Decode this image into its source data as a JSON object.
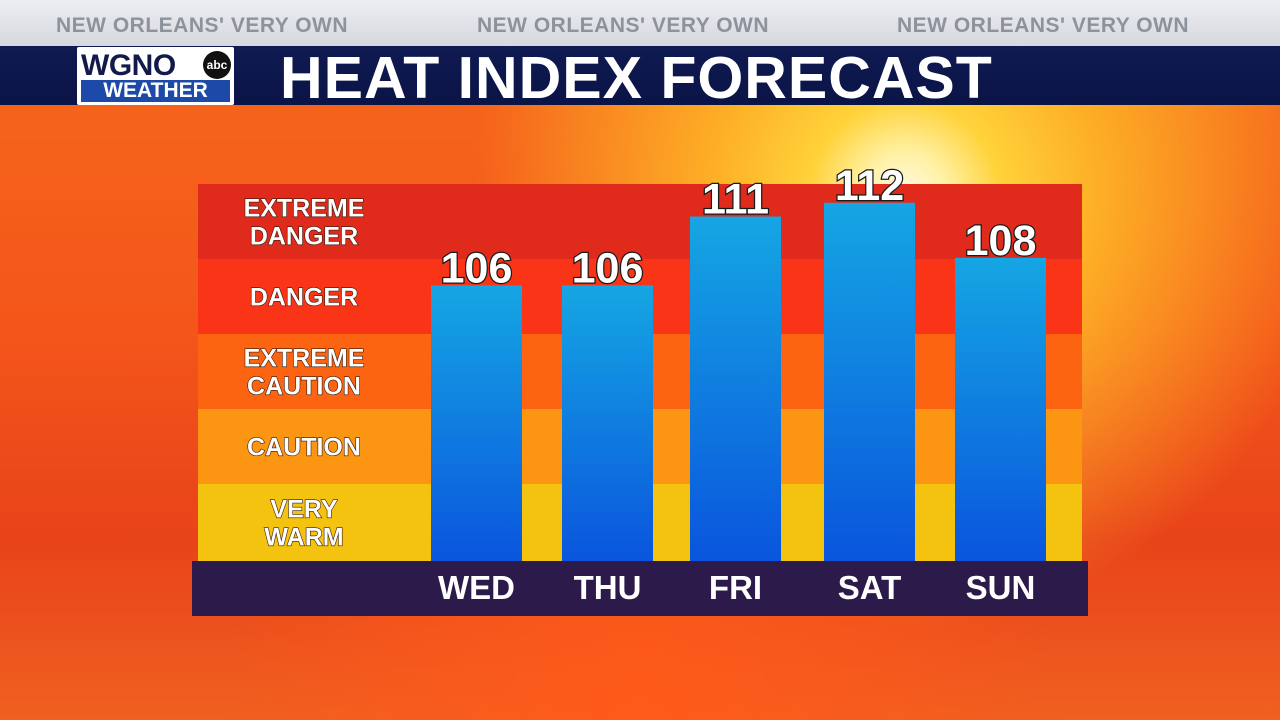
{
  "ticker": {
    "items": [
      "NEW ORLEANS' VERY OWN",
      "NEW ORLEANS' VERY OWN",
      "NEW ORLEANS' VERY OWN"
    ]
  },
  "logo": {
    "top": "WGNO",
    "badge": "abc",
    "sub": "WEATHER"
  },
  "title": "HEAT INDEX FORECAST",
  "colors": {
    "extreme_danger": "#e02a1c",
    "danger": "#fa3517",
    "extreme_caution": "#fc6411",
    "caution": "#fb9512",
    "very_warm": "#f3c30f",
    "bar_top": "#15a6e3",
    "bar_bottom": "#0a55dd",
    "axis_band": "#2c1a4a"
  },
  "chart_data": {
    "type": "bar",
    "title": "HEAT INDEX FORECAST",
    "categories": [
      "WED",
      "THU",
      "FRI",
      "SAT",
      "SUN"
    ],
    "values": [
      106,
      106,
      111,
      112,
      108
    ],
    "data_labels": [
      "106",
      "106",
      "111",
      "112",
      "108"
    ],
    "zones": [
      {
        "lines": [
          "EXTREME",
          "DANGER"
        ],
        "color": "#e02a1c",
        "range": [
          110,
          113
        ]
      },
      {
        "lines": [
          "DANGER"
        ],
        "color": "#fa3517",
        "range": [
          104,
          110
        ]
      },
      {
        "lines": [
          "EXTREME",
          "CAUTION"
        ],
        "color": "#fc6411",
        "range": [
          98,
          104
        ]
      },
      {
        "lines": [
          "CAUTION"
        ],
        "color": "#fb9512",
        "range": [
          92,
          98
        ]
      },
      {
        "lines": [
          "VERY",
          "WARM"
        ],
        "color": "#f3c30f",
        "range": [
          86,
          92
        ]
      }
    ],
    "ylim": [
      86,
      113
    ],
    "grid": false,
    "legend": "none"
  }
}
